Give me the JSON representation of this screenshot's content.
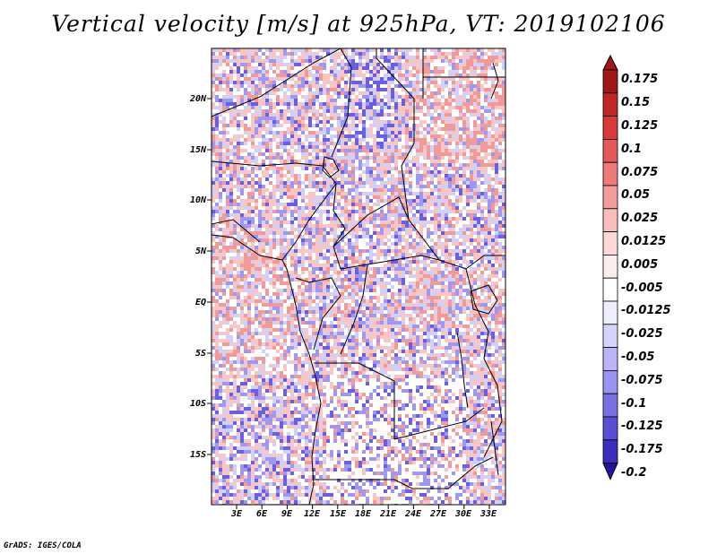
{
  "title": "Vertical velocity [m/s] at 925hPa, VT: 2019102106",
  "credit": "GrADS: IGES/COLA",
  "lat_labels": [
    "20N",
    "15N",
    "10N",
    "5N",
    "EQ",
    "5S",
    "10S",
    "15S"
  ],
  "lon_labels": [
    "3E",
    "6E",
    "9E",
    "12E",
    "15E",
    "18E",
    "21E",
    "24E",
    "27E",
    "30E",
    "33E"
  ],
  "colorbar": {
    "levels": [
      "0.175",
      "0.15",
      "0.125",
      "0.1",
      "0.075",
      "0.05",
      "0.025",
      "0.0125",
      "0.005",
      "-0.005",
      "-0.0125",
      "-0.025",
      "-0.05",
      "-0.075",
      "-0.1",
      "-0.125",
      "-0.175",
      "-0.2"
    ],
    "colors": [
      "#a01818",
      "#c02626",
      "#d83a3a",
      "#e45858",
      "#ee7a7a",
      "#f49c9c",
      "#f8bcbc",
      "#fcd8d8",
      "#fdeeee",
      "#ffffff",
      "#eeeeff",
      "#d6d4fb",
      "#b9b5f6",
      "#9a93ef",
      "#7a70e4",
      "#5a4ed6",
      "#3b2ec0",
      "#2414a4"
    ],
    "top_color": "#a01818",
    "bottom_color": "#2414a4"
  },
  "map_field_colors": {
    "positive_light": "#f9c6c6",
    "positive_mid": "#f09a9a",
    "negative_light": "#d0d0fb",
    "negative_mid": "#9f98f0",
    "negative_strong": "#6a5fe0"
  }
}
